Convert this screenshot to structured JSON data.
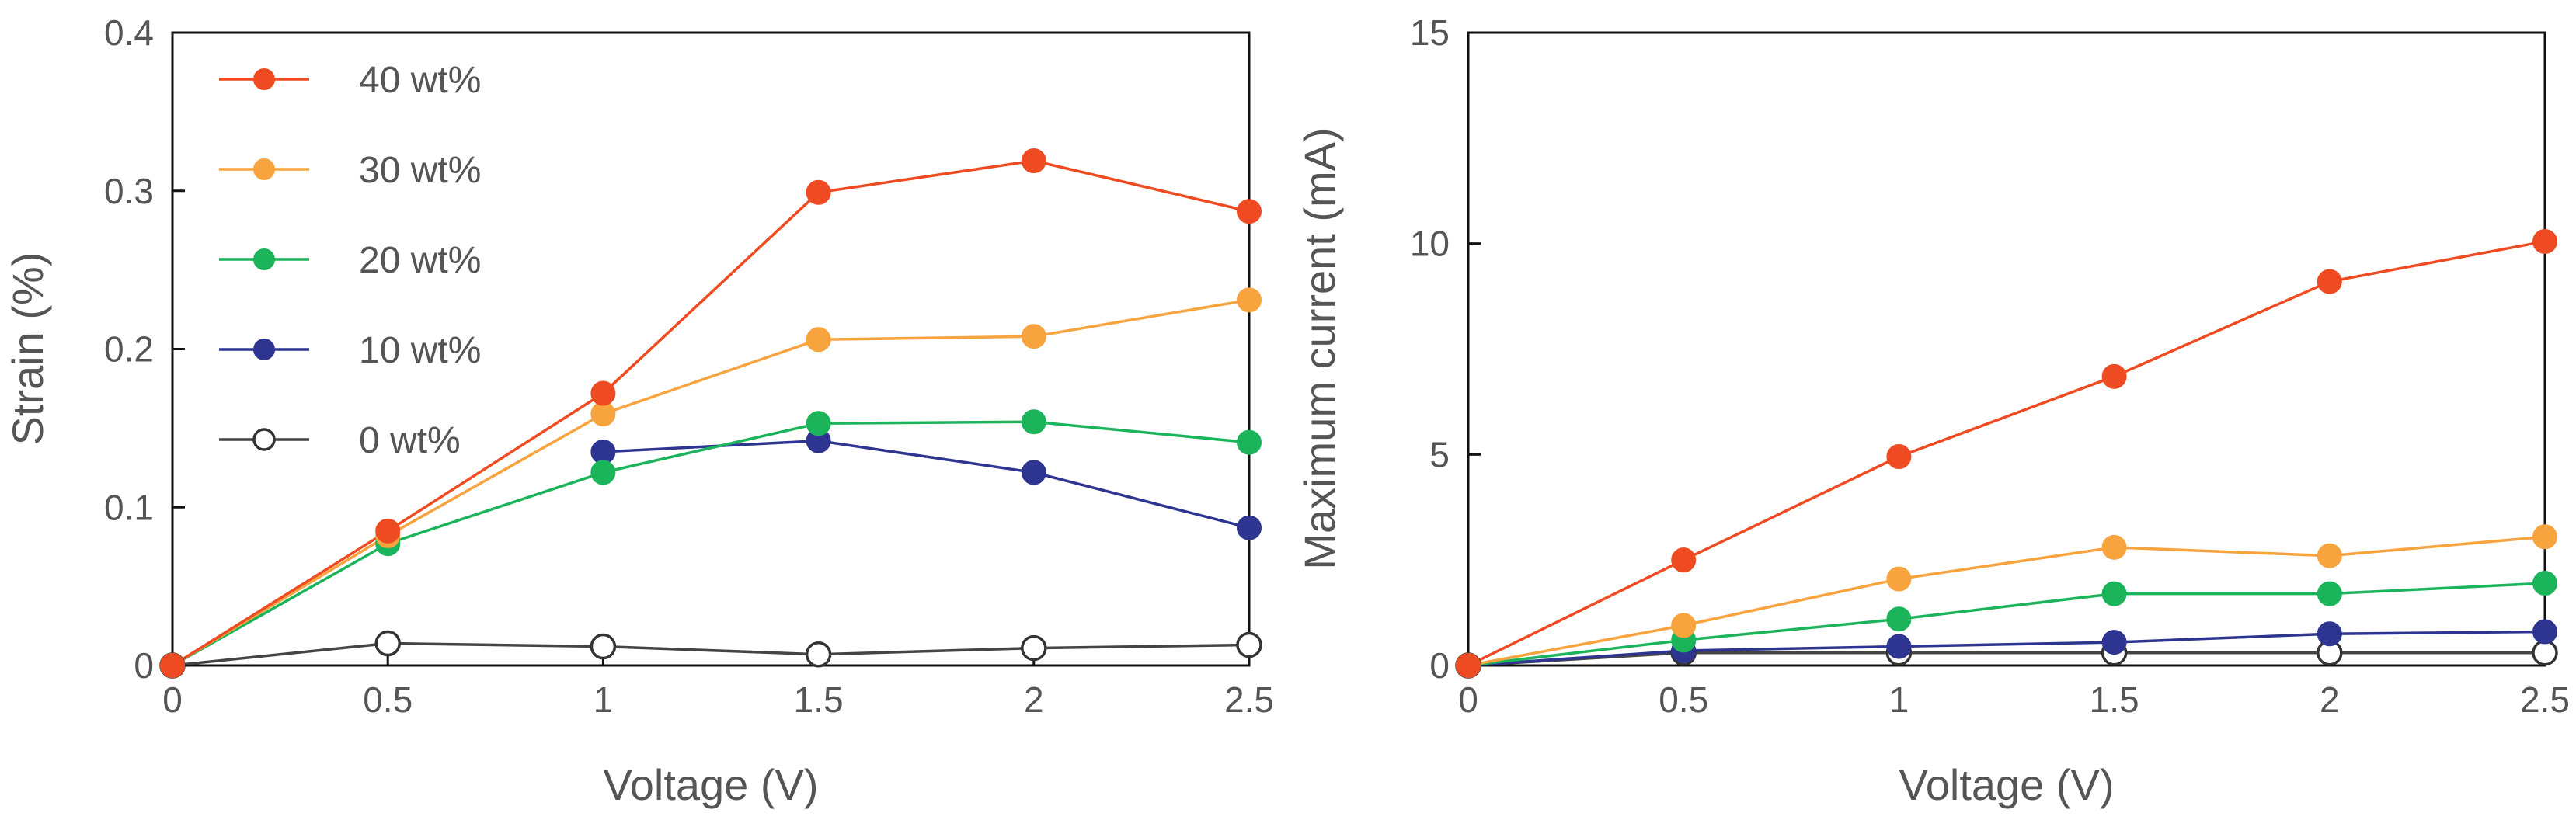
{
  "chart_data": [
    {
      "type": "line",
      "title": "",
      "xlabel": "Voltage (V)",
      "ylabel": "Strain (%)",
      "x": [
        0,
        0.5,
        1,
        1.5,
        2,
        2.5
      ],
      "xlim": [
        0,
        2.5
      ],
      "ylim": [
        0,
        0.4
      ],
      "xticks": [
        "0",
        "0.5",
        "1",
        "1.5",
        "2",
        "2.5"
      ],
      "yticks": [
        "0",
        "0.1",
        "0.2",
        "0.3",
        "0.4"
      ],
      "xtick_values": [
        0,
        0.5,
        1,
        1.5,
        2,
        2.5
      ],
      "ytick_values": [
        0,
        0.1,
        0.2,
        0.3,
        0.4
      ],
      "grid": false,
      "legend_position": "top-left",
      "series": [
        {
          "name": "40 wt%",
          "color": "#EE4B22",
          "hollow": false,
          "values": [
            0,
            0.085,
            0.172,
            0.299,
            0.319,
            0.287
          ]
        },
        {
          "name": "30 wt%",
          "color": "#F7A33E",
          "hollow": false,
          "values": [
            0,
            0.082,
            0.159,
            0.206,
            0.208,
            0.231
          ]
        },
        {
          "name": "20 wt%",
          "color": "#1BB45A",
          "hollow": false,
          "values": [
            0,
            0.077,
            0.122,
            0.153,
            0.154,
            0.141
          ]
        },
        {
          "name": "10 wt%",
          "color": "#2E3591",
          "hollow": false,
          "values": [
            null,
            null,
            0.135,
            0.142,
            0.122,
            0.087
          ]
        },
        {
          "name": "0 wt%",
          "color": "#444444",
          "hollow": true,
          "values": [
            0,
            0.014,
            0.012,
            0.007,
            0.011,
            0.013
          ]
        }
      ]
    },
    {
      "type": "line",
      "title": "",
      "xlabel": "Voltage (V)",
      "ylabel": "Maximum current (mA)",
      "x": [
        0,
        0.5,
        1,
        1.5,
        2,
        2.5
      ],
      "xlim": [
        0,
        2.5
      ],
      "ylim": [
        0,
        15
      ],
      "xticks": [
        "0",
        "0.5",
        "1",
        "1.5",
        "2",
        "2.5"
      ],
      "yticks": [
        "0",
        "5",
        "10",
        "15"
      ],
      "xtick_values": [
        0,
        0.5,
        1,
        1.5,
        2,
        2.5
      ],
      "ytick_values": [
        0,
        5,
        10,
        15
      ],
      "grid": false,
      "legend_position": "none",
      "series": [
        {
          "name": "40 wt%",
          "color": "#EE4B22",
          "hollow": false,
          "values": [
            0,
            2.5,
            4.95,
            6.85,
            9.1,
            10.05
          ]
        },
        {
          "name": "30 wt%",
          "color": "#F7A33E",
          "hollow": false,
          "values": [
            0,
            0.95,
            2.05,
            2.8,
            2.6,
            3.05
          ]
        },
        {
          "name": "20 wt%",
          "color": "#1BB45A",
          "hollow": false,
          "values": [
            0,
            0.6,
            1.1,
            1.7,
            1.7,
            1.95
          ]
        },
        {
          "name": "10 wt%",
          "color": "#2E3591",
          "hollow": false,
          "values": [
            0,
            0.35,
            0.45,
            0.55,
            0.75,
            0.8
          ]
        },
        {
          "name": "0 wt%",
          "color": "#444444",
          "hollow": true,
          "values": [
            0,
            0.3,
            0.3,
            0.3,
            0.3,
            0.3
          ]
        }
      ]
    }
  ]
}
